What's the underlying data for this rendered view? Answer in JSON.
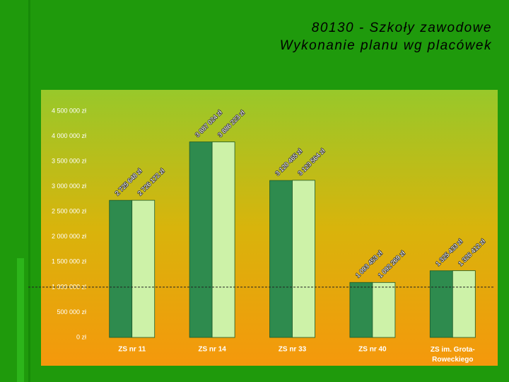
{
  "chart_data": {
    "type": "bar",
    "title": [
      "80130 - Szkoły zawodowe",
      "Wykonanie planu wg placówek"
    ],
    "categories": [
      "ZS nr 11",
      "ZS nr 14",
      "ZS nr 33",
      "ZS nr 40",
      "ZS im. Grota-Roweckiego"
    ],
    "series": [
      {
        "color": "#2e8b4e",
        "values": [
          2725648,
          3887024,
          3120465,
          1093453,
          1325433
        ],
        "value_labels": [
          "2 725 648 zł",
          "3 887 024 zł",
          "3 120 465 zł",
          "1 093 453 zł",
          "1 325 433 zł"
        ]
      },
      {
        "color": "#cdf2a8",
        "values": [
          2726172,
          3886223,
          3123564,
          1092269,
          1326412
        ],
        "value_labels": [
          "2 726 172 zł",
          "3 886 223 zł",
          "3 123 564 zł",
          "1 092 269 zł",
          "1 326 412 zł"
        ]
      }
    ],
    "ylim": [
      0,
      4500000
    ],
    "yticks": [
      {
        "value": 0,
        "label": "0 zł"
      },
      {
        "value": 500000,
        "label": "500 000 zł"
      },
      {
        "value": 1000000,
        "label": "1 000 000 zł"
      },
      {
        "value": 1500000,
        "label": "1 500 000 zł"
      },
      {
        "value": 2000000,
        "label": "2 000 000 zł"
      },
      {
        "value": 2500000,
        "label": "2 500 000 zł"
      },
      {
        "value": 3000000,
        "label": "3 000 000 zł"
      },
      {
        "value": 3500000,
        "label": "3 500 000 zł"
      },
      {
        "value": 4000000,
        "label": "4 000 000 zł"
      },
      {
        "value": 4500000,
        "label": "4 500 000 zł"
      }
    ],
    "reference_line": 1000000
  }
}
